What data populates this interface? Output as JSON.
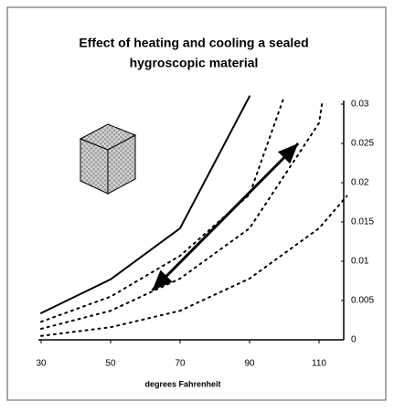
{
  "chart_data": {
    "type": "line",
    "title": [
      "Effect of heating and cooling a sealed",
      "hygroscopic material"
    ],
    "x_label": "degrees Fahrenheit",
    "xlim": [
      30,
      118
    ],
    "xticks": [
      30,
      50,
      70,
      90,
      110
    ],
    "ylim": [
      0,
      0.03
    ],
    "yticks": [
      0.03,
      0.025,
      0.02,
      0.015,
      0.01,
      0.005,
      0
    ],
    "y_axis_side": "right",
    "series": [
      {
        "color": "#000000",
        "style": "solid",
        "x": [
          30,
          50,
          70,
          90
        ],
        "values": [
          0.0034,
          0.0077,
          0.0142,
          0.031
        ]
      },
      {
        "color": "#000000",
        "style": "dotted",
        "x": [
          30,
          50,
          70,
          90,
          100
        ],
        "values": [
          0.0023,
          0.0055,
          0.0107,
          0.0185,
          0.031
        ]
      },
      {
        "color": "#000000",
        "style": "dotted",
        "x": [
          30,
          50,
          70,
          90,
          110,
          111
        ],
        "values": [
          0.0014,
          0.0037,
          0.0078,
          0.0142,
          0.0276,
          0.0305
        ]
      },
      {
        "color": "#000000",
        "style": "dotted",
        "x": [
          30,
          50,
          70,
          90,
          110,
          118
        ],
        "values": [
          0.0005,
          0.0016,
          0.0037,
          0.0078,
          0.0142,
          0.0183
        ]
      }
    ],
    "arrow": {
      "x": [
        62,
        104
      ],
      "values": [
        0.0063,
        0.025
      ]
    }
  }
}
